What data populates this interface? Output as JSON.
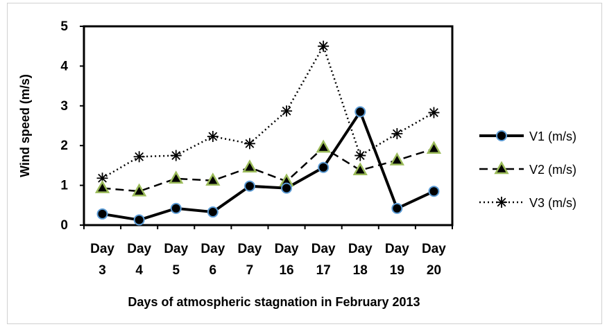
{
  "chart_data": {
    "type": "line",
    "xlabel": "Days of atmospheric stagnation in February 2013",
    "ylabel": "Wind speed (m/s)",
    "ylim": [
      0,
      5
    ],
    "yticks": [
      "0",
      "1",
      "2",
      "3",
      "4",
      "5"
    ],
    "categories": [
      {
        "top": "Day",
        "bottom": "3"
      },
      {
        "top": "Day",
        "bottom": "4"
      },
      {
        "top": "Day",
        "bottom": "5"
      },
      {
        "top": "Day",
        "bottom": "6"
      },
      {
        "top": "Day",
        "bottom": "7"
      },
      {
        "top": "Day",
        "bottom": "16"
      },
      {
        "top": "Day",
        "bottom": "17"
      },
      {
        "top": "Day",
        "bottom": "18"
      },
      {
        "top": "Day",
        "bottom": "19"
      },
      {
        "top": "Day",
        "bottom": "20"
      }
    ],
    "grid": false,
    "legend_position": "right",
    "series": [
      {
        "name": "V1 (m/s)",
        "marker": "circle",
        "line": "solid",
        "color": "#000000",
        "marker_fill": "#000000",
        "marker_edge": "#5b9bd5",
        "values": [
          0.28,
          0.13,
          0.42,
          0.33,
          0.98,
          0.93,
          1.45,
          2.85,
          0.42,
          0.85
        ]
      },
      {
        "name": "V2 (m/s)",
        "marker": "triangle",
        "line": "dashed",
        "color": "#000000",
        "marker_fill": "#000000",
        "marker_edge": "#9bbb59",
        "values": [
          0.93,
          0.85,
          1.17,
          1.12,
          1.45,
          1.1,
          1.95,
          1.38,
          1.63,
          1.92
        ]
      },
      {
        "name": "V3 (m/s)",
        "marker": "asterisk",
        "line": "dotted",
        "color": "#000000",
        "marker_fill": "#000000",
        "marker_edge": "#000000",
        "values": [
          1.18,
          1.72,
          1.75,
          2.23,
          2.05,
          2.87,
          4.5,
          1.75,
          2.3,
          2.83
        ]
      }
    ]
  }
}
